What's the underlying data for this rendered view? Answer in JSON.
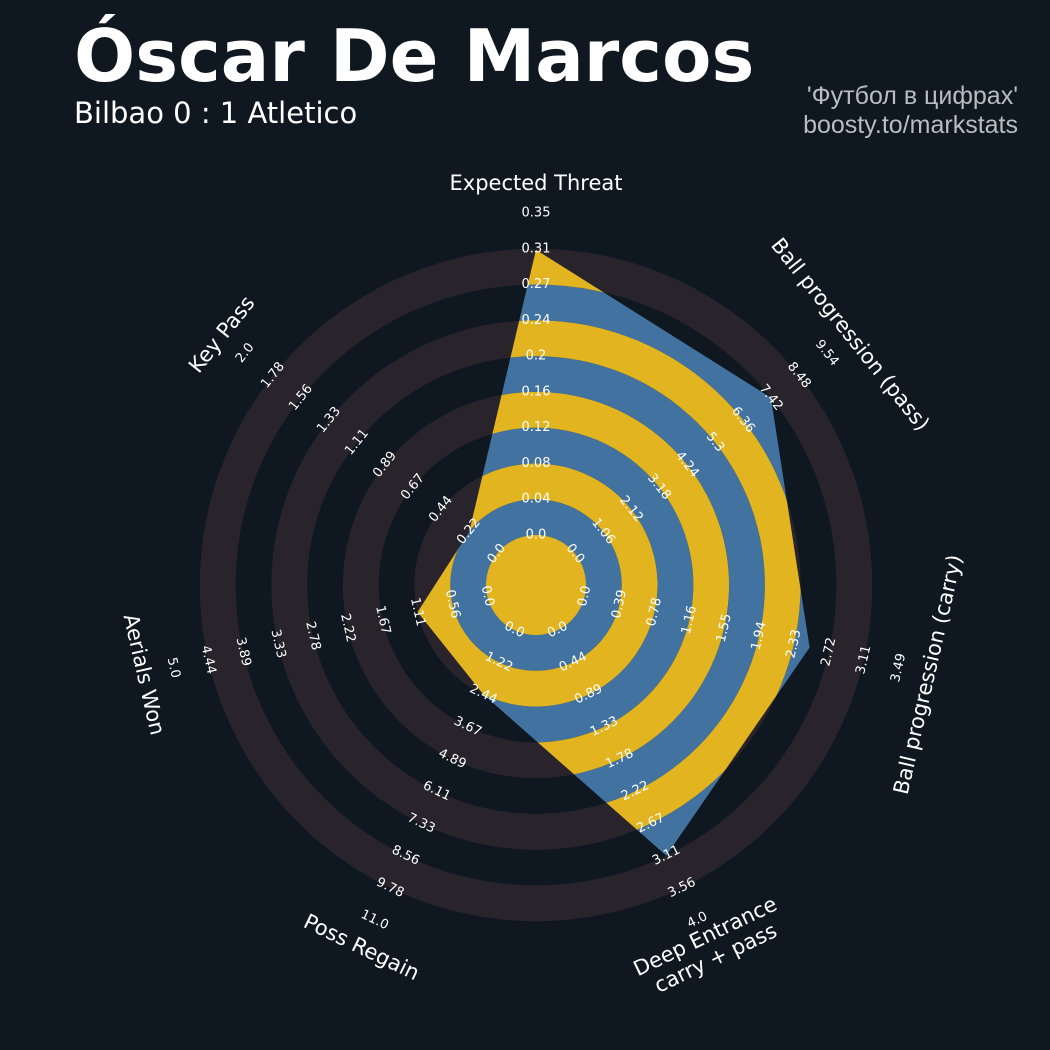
{
  "header": {
    "title": "Óscar De Marcos",
    "subtitle": "Bilbao 0 : 1 Atletico",
    "credit_line1": "'Футбол в цифрах'",
    "credit_line2": "boosty.to/markstats"
  },
  "colors": {
    "background": "#0f1820",
    "ring_dark": "#29242b",
    "ring_blue": "#4273a0",
    "ring_gold": "#e2b41f",
    "text": "#ffffff"
  },
  "chart_data": {
    "type": "radar",
    "params": [
      {
        "label": "Expected Threat",
        "ticks": [
          "0.0",
          "0.04",
          "0.08",
          "0.12",
          "0.16",
          "0.2",
          "0.24",
          "0.27",
          "0.31",
          "0.35"
        ],
        "min": 0.0,
        "max": 0.35,
        "value": 0.31
      },
      {
        "label": "Ball progression (pass)",
        "ticks": [
          "0.0",
          "1.06",
          "2.12",
          "3.18",
          "4.24",
          "5.3",
          "6.36",
          "7.42",
          "8.48",
          "9.54"
        ],
        "min": 0.0,
        "max": 9.54,
        "value": 7.42
      },
      {
        "label": "Ball progression (carry)",
        "ticks": [
          "0.0",
          "0.39",
          "0.78",
          "1.16",
          "1.55",
          "1.94",
          "2.33",
          "2.72",
          "3.11",
          "3.49"
        ],
        "min": 0.0,
        "max": 3.49,
        "value": 2.5
      },
      {
        "label": "Deep Entrance\ncarry + pass",
        "ticks": [
          "0.0",
          "0.44",
          "0.89",
          "1.33",
          "1.78",
          "2.22",
          "2.67",
          "3.11",
          "3.56",
          "4.0"
        ],
        "min": 0.0,
        "max": 4.0,
        "value": 3.11
      },
      {
        "label": "Poss Regain",
        "ticks": [
          "0.0",
          "1.22",
          "2.44",
          "3.67",
          "4.89",
          "6.11",
          "7.33",
          "8.56",
          "9.78",
          "11.0"
        ],
        "min": 0.0,
        "max": 11.0,
        "value": 2.44
      },
      {
        "label": "Aerials Won",
        "ticks": [
          "0.0",
          "0.56",
          "1.11",
          "1.67",
          "2.22",
          "2.78",
          "3.33",
          "3.89",
          "4.44",
          "5.0"
        ],
        "min": 0.0,
        "max": 5.0,
        "value": 1.11
      },
      {
        "label": "Key Pass",
        "ticks": [
          "0.0",
          "0.22",
          "0.44",
          "0.67",
          "0.89",
          "1.11",
          "1.33",
          "1.56",
          "1.78",
          "2.0"
        ],
        "min": 0.0,
        "max": 2.0,
        "value": 0.22
      }
    ]
  }
}
